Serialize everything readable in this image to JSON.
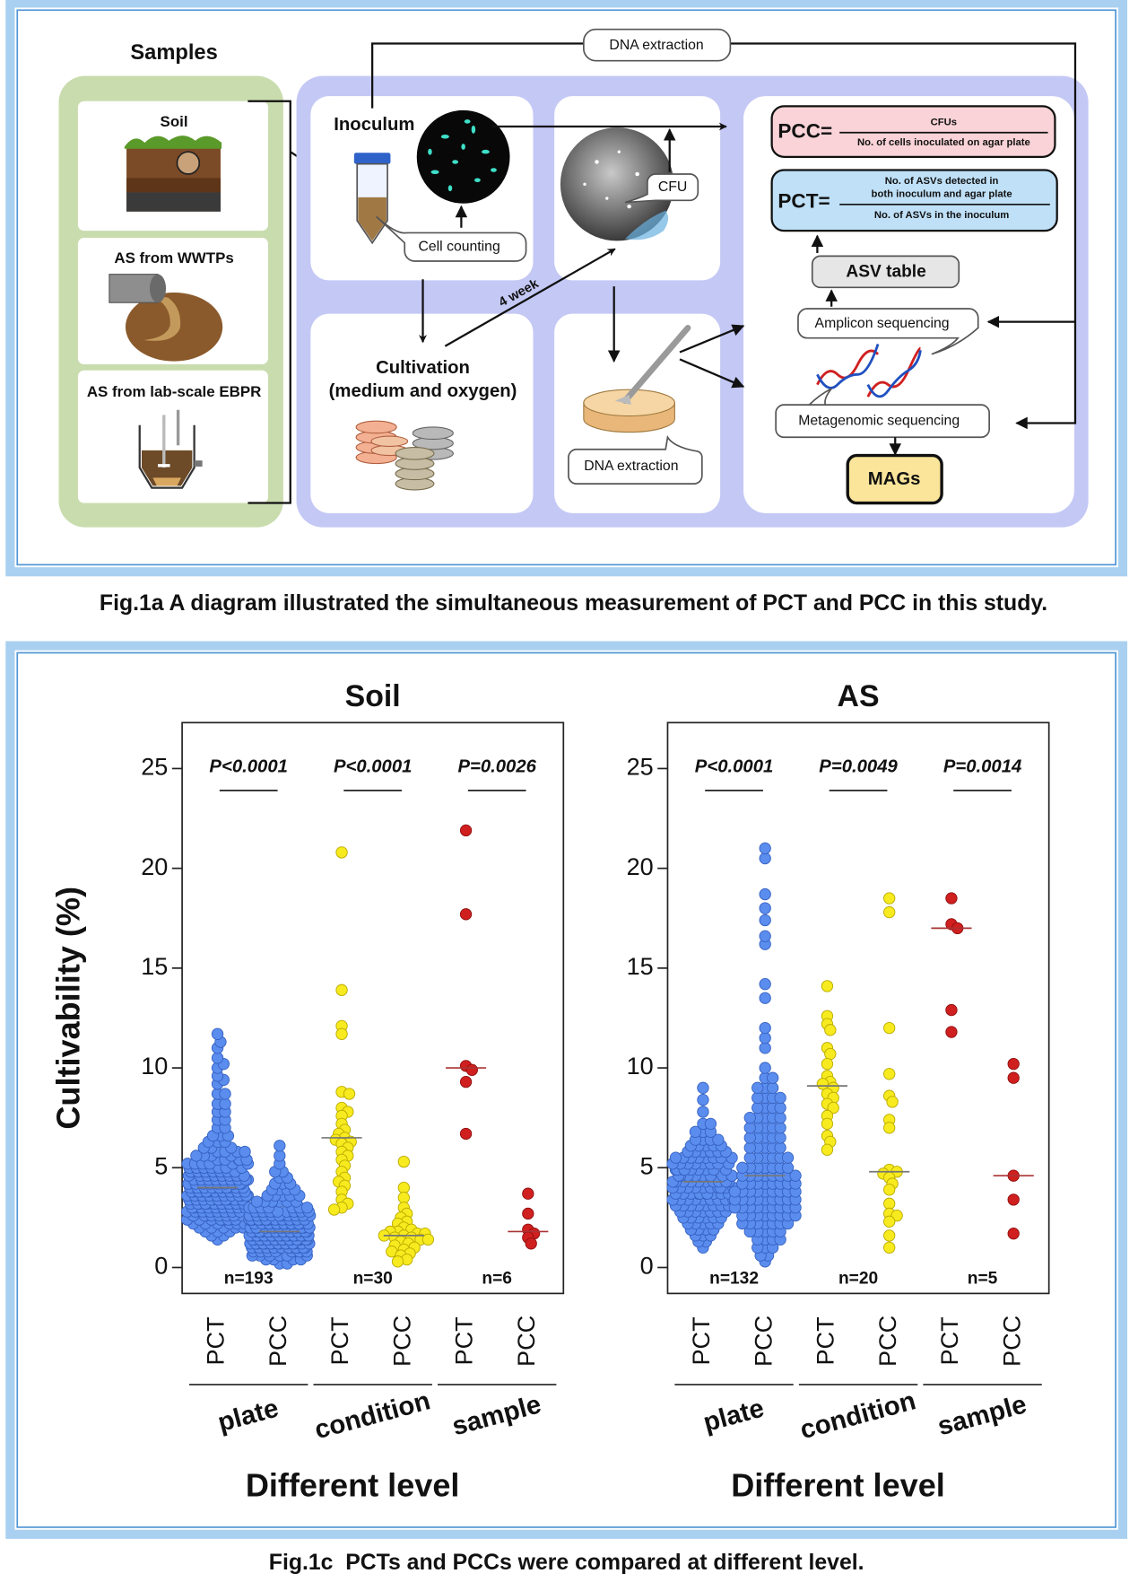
{
  "diagram": {
    "samples_title": "Samples",
    "samples": [
      "Soil",
      "AS from WWTPs",
      "AS from lab-scale EBPR"
    ],
    "inoculum": "Inoculum",
    "cell_counting": "Cell counting",
    "dna_extraction_inoculum": "DNA extraction",
    "cultivation": [
      "Cultivation",
      "(medium and oxygen)"
    ],
    "incubation": "4 week",
    "cfu": "CFU",
    "dna_extraction_plate": "DNA extraction",
    "pcc": {
      "lhs": "PCC=",
      "numerator": "CFUs",
      "denominator": "No. of cells inoculated on agar plate"
    },
    "pct": {
      "lhs": "PCT=",
      "numerator": [
        "No. of ASVs detected in",
        "both inoculum and agar plate"
      ],
      "denominator": "No. of ASVs in the inoculum"
    },
    "asv_table": "ASV table",
    "amplicon_sequencing": "Amplicon sequencing",
    "metagenomic_sequencing": "Metagenomic sequencing",
    "mags": "MAGs"
  },
  "captions": {
    "fig1a": "Fig.1a A diagram illustrated the simultaneous measurement of PCT and PCC in this study.",
    "fig1c": "Fig.1c  PCTs and PCCs were compared at different level."
  },
  "chart_data": [
    {
      "type": "swarm",
      "title": "Soil",
      "ylabel": "Cultivability (%)",
      "xlabel": "Different level",
      "ylim": [
        -1.3,
        27.3
      ],
      "yticks": [
        0,
        5,
        10,
        15,
        20,
        25
      ],
      "categories": [
        "PCT",
        "PCC",
        "PCT",
        "PCC",
        "PCT",
        "PCC"
      ],
      "groups": [
        {
          "name": "plate",
          "p_label": "P<0.0001",
          "n_label": "n=193",
          "color": "#5b8def",
          "medians": [
            4.0,
            1.8
          ],
          "values": [
            [
              1.4,
              1.6,
              1.6,
              1.8,
              1.8,
              1.8,
              2.0,
              2.0,
              2.0,
              2.0,
              2.0,
              2.2,
              2.2,
              2.2,
              2.2,
              2.2,
              2.2,
              2.4,
              2.4,
              2.4,
              2.4,
              2.4,
              2.4,
              2.4,
              2.6,
              2.6,
              2.6,
              2.6,
              2.6,
              2.6,
              2.6,
              2.6,
              2.8,
              2.8,
              2.8,
              2.8,
              2.8,
              2.8,
              2.8,
              2.8,
              2.8,
              3.0,
              3.0,
              3.0,
              3.0,
              3.0,
              3.0,
              3.0,
              3.0,
              3.0,
              3.0,
              3.2,
              3.2,
              3.2,
              3.2,
              3.2,
              3.2,
              3.2,
              3.2,
              3.2,
              3.2,
              3.4,
              3.4,
              3.4,
              3.4,
              3.4,
              3.4,
              3.4,
              3.4,
              3.4,
              3.4,
              3.4,
              3.6,
              3.6,
              3.6,
              3.6,
              3.6,
              3.6,
              3.6,
              3.6,
              3.6,
              3.6,
              3.6,
              3.8,
              3.8,
              3.8,
              3.8,
              3.8,
              3.8,
              3.8,
              3.8,
              3.8,
              3.8,
              3.8,
              4.0,
              4.0,
              4.0,
              4.0,
              4.0,
              4.0,
              4.0,
              4.0,
              4.0,
              4.0,
              4.0,
              4.2,
              4.2,
              4.2,
              4.2,
              4.2,
              4.2,
              4.2,
              4.2,
              4.2,
              4.2,
              4.4,
              4.4,
              4.4,
              4.4,
              4.4,
              4.4,
              4.4,
              4.4,
              4.4,
              4.6,
              4.6,
              4.6,
              4.6,
              4.6,
              4.6,
              4.6,
              4.6,
              4.8,
              4.8,
              4.8,
              4.8,
              4.8,
              4.8,
              4.8,
              5.0,
              5.0,
              5.0,
              5.0,
              5.0,
              5.0,
              5.0,
              5.2,
              5.2,
              5.2,
              5.2,
              5.2,
              5.2,
              5.4,
              5.4,
              5.4,
              5.4,
              5.4,
              5.6,
              5.6,
              5.6,
              5.6,
              5.8,
              5.8,
              5.8,
              5.8,
              6.0,
              6.0,
              6.0,
              6.3,
              6.3,
              6.3,
              6.6,
              6.6,
              6.6,
              7.0,
              7.0,
              7.4,
              7.4,
              7.8,
              7.8,
              8.2,
              8.2,
              8.7,
              8.7,
              9.2,
              9.4,
              9.6,
              10.0,
              10.2,
              10.5,
              11.0,
              11.3,
              11.7
            ],
            [
              0.2,
              0.2,
              0.4,
              0.4,
              0.4,
              0.4,
              0.6,
              0.6,
              0.6,
              0.6,
              0.6,
              0.6,
              0.8,
              0.8,
              0.8,
              0.8,
              0.8,
              0.8,
              0.8,
              0.8,
              0.8,
              1.0,
              1.0,
              1.0,
              1.0,
              1.0,
              1.0,
              1.0,
              1.0,
              1.0,
              1.0,
              1.0,
              1.0,
              1.2,
              1.2,
              1.2,
              1.2,
              1.2,
              1.2,
              1.2,
              1.2,
              1.2,
              1.2,
              1.2,
              1.2,
              1.2,
              1.2,
              1.2,
              1.4,
              1.4,
              1.4,
              1.4,
              1.4,
              1.4,
              1.4,
              1.4,
              1.4,
              1.4,
              1.4,
              1.4,
              1.4,
              1.4,
              1.4,
              1.4,
              1.4,
              1.6,
              1.6,
              1.6,
              1.6,
              1.6,
              1.6,
              1.6,
              1.6,
              1.6,
              1.6,
              1.6,
              1.6,
              1.6,
              1.6,
              1.6,
              1.6,
              1.6,
              1.6,
              1.8,
              1.8,
              1.8,
              1.8,
              1.8,
              1.8,
              1.8,
              1.8,
              1.8,
              1.8,
              1.8,
              1.8,
              1.8,
              1.8,
              1.8,
              1.8,
              1.8,
              1.8,
              2.0,
              2.0,
              2.0,
              2.0,
              2.0,
              2.0,
              2.0,
              2.0,
              2.0,
              2.0,
              2.0,
              2.0,
              2.0,
              2.0,
              2.0,
              2.0,
              2.2,
              2.2,
              2.2,
              2.2,
              2.2,
              2.2,
              2.2,
              2.2,
              2.2,
              2.2,
              2.2,
              2.2,
              2.2,
              2.2,
              2.4,
              2.4,
              2.4,
              2.4,
              2.4,
              2.4,
              2.4,
              2.4,
              2.4,
              2.4,
              2.4,
              2.4,
              2.6,
              2.6,
              2.6,
              2.6,
              2.6,
              2.6,
              2.6,
              2.6,
              2.6,
              2.6,
              2.8,
              2.8,
              2.8,
              2.8,
              2.8,
              2.8,
              2.8,
              2.8,
              3.0,
              3.0,
              3.0,
              3.0,
              3.0,
              3.0,
              3.0,
              3.3,
              3.3,
              3.3,
              3.3,
              3.3,
              3.3,
              3.6,
              3.6,
              3.6,
              3.6,
              3.6,
              3.9,
              3.9,
              3.9,
              3.9,
              4.2,
              4.2,
              4.2,
              4.5,
              4.5,
              4.8,
              4.8,
              5.2,
              5.6,
              6.1
            ]
          ]
        },
        {
          "name": "condition",
          "p_label": "P<0.0001",
          "n_label": "n=30",
          "color": "#f7ea1e",
          "medians": [
            6.5,
            1.6
          ],
          "values": [
            [
              20.8,
              13.9,
              12.1,
              11.7,
              8.8,
              8.7,
              8.0,
              7.8,
              7.6,
              7.2,
              6.9,
              6.7,
              6.5,
              6.4,
              6.3,
              6.2,
              6.0,
              5.8,
              5.6,
              5.4,
              5.1,
              4.8,
              4.5,
              4.3,
              4.1,
              3.8,
              3.4,
              3.2,
              3.0,
              2.9
            ],
            [
              5.3,
              4.0,
              3.5,
              3.0,
              2.7,
              2.5,
              2.3,
              2.2,
              2.0,
              1.9,
              1.8,
              1.8,
              1.7,
              1.7,
              1.6,
              1.6,
              1.5,
              1.5,
              1.4,
              1.4,
              1.3,
              1.2,
              1.1,
              1.0,
              0.9,
              0.8,
              0.7,
              0.6,
              0.4,
              0.3
            ]
          ]
        },
        {
          "name": "sample",
          "p_label": "P=0.0026",
          "n_label": "n=6",
          "color": "#d01f1f",
          "medians": [
            10.0,
            1.8
          ],
          "values": [
            [
              21.9,
              17.7,
              10.1,
              9.9,
              9.3,
              6.7
            ],
            [
              3.7,
              2.7,
              1.9,
              1.7,
              1.5,
              1.2
            ]
          ]
        }
      ]
    },
    {
      "type": "swarm",
      "title": "AS",
      "xlabel": "Different level",
      "ylim": [
        -1.3,
        27.3
      ],
      "yticks": [
        0,
        5,
        10,
        15,
        20,
        25
      ],
      "categories": [
        "PCT",
        "PCC",
        "PCT",
        "PCC",
        "PCT",
        "PCC"
      ],
      "groups": [
        {
          "name": "plate",
          "p_label": "P<0.0001",
          "n_label": "n=132",
          "color": "#5b8def",
          "medians": [
            4.3,
            4.6
          ],
          "values": [
            [
              1.0,
              1.3,
              1.3,
              1.6,
              1.6,
              1.6,
              1.9,
              1.9,
              1.9,
              1.9,
              2.2,
              2.2,
              2.2,
              2.2,
              2.2,
              2.5,
              2.5,
              2.5,
              2.5,
              2.5,
              2.5,
              2.8,
              2.8,
              2.8,
              2.8,
              2.8,
              2.8,
              2.8,
              3.1,
              3.1,
              3.1,
              3.1,
              3.1,
              3.1,
              3.1,
              3.1,
              3.4,
              3.4,
              3.4,
              3.4,
              3.4,
              3.4,
              3.4,
              3.4,
              3.4,
              3.7,
              3.7,
              3.7,
              3.7,
              3.7,
              3.7,
              3.7,
              3.7,
              3.7,
              3.7,
              4.0,
              4.0,
              4.0,
              4.0,
              4.0,
              4.0,
              4.0,
              4.0,
              4.0,
              4.0,
              4.3,
              4.3,
              4.3,
              4.3,
              4.3,
              4.3,
              4.3,
              4.3,
              4.3,
              4.3,
              4.6,
              4.6,
              4.6,
              4.6,
              4.6,
              4.6,
              4.6,
              4.6,
              4.6,
              4.9,
              4.9,
              4.9,
              4.9,
              4.9,
              4.9,
              4.9,
              4.9,
              4.9,
              5.2,
              5.2,
              5.2,
              5.2,
              5.2,
              5.2,
              5.2,
              5.2,
              5.5,
              5.5,
              5.5,
              5.5,
              5.5,
              5.5,
              5.5,
              5.5,
              5.8,
              5.8,
              5.8,
              5.8,
              5.8,
              5.8,
              6.1,
              6.1,
              6.1,
              6.1,
              6.1,
              6.4,
              6.4,
              6.4,
              6.4,
              6.8,
              6.8,
              6.8,
              7.2,
              7.2,
              7.8,
              8.4,
              9.0
            ],
            [
              0.3,
              0.6,
              0.6,
              1.0,
              1.0,
              1.0,
              1.4,
              1.4,
              1.4,
              1.4,
              1.8,
              1.8,
              1.8,
              1.8,
              1.8,
              2.2,
              2.2,
              2.2,
              2.2,
              2.2,
              2.2,
              2.2,
              2.6,
              2.6,
              2.6,
              2.6,
              2.6,
              2.6,
              2.6,
              2.6,
              3.0,
              3.0,
              3.0,
              3.0,
              3.0,
              3.0,
              3.0,
              3.0,
              3.0,
              3.4,
              3.4,
              3.4,
              3.4,
              3.4,
              3.4,
              3.4,
              3.4,
              3.4,
              3.8,
              3.8,
              3.8,
              3.8,
              3.8,
              3.8,
              3.8,
              3.8,
              3.8,
              4.2,
              4.2,
              4.2,
              4.2,
              4.2,
              4.2,
              4.2,
              4.2,
              4.6,
              4.6,
              4.6,
              4.6,
              4.6,
              4.6,
              4.6,
              4.6,
              5.0,
              5.0,
              5.0,
              5.0,
              5.0,
              5.0,
              5.0,
              5.5,
              5.5,
              5.5,
              5.5,
              5.5,
              5.5,
              6.0,
              6.0,
              6.0,
              6.0,
              6.0,
              6.5,
              6.5,
              6.5,
              6.5,
              6.5,
              7.0,
              7.0,
              7.0,
              7.0,
              7.0,
              7.5,
              7.5,
              7.5,
              7.5,
              7.5,
              8.0,
              8.0,
              8.0,
              8.0,
              8.5,
              8.5,
              8.5,
              8.5,
              9.0,
              9.0,
              9.0,
              9.5,
              9.5,
              10.0,
              11.0,
              11.5,
              12.0,
              13.5,
              14.2,
              16.2,
              16.6,
              17.4,
              18.0,
              18.7,
              20.5,
              21.0
            ]
          ]
        },
        {
          "name": "condition",
          "p_label": "P=0.0049",
          "n_label": "n=20",
          "color": "#f7ea1e",
          "medians": [
            9.1,
            4.8
          ],
          "values": [
            [
              14.1,
              12.6,
              12.2,
              11.9,
              11.0,
              10.7,
              10.2,
              9.6,
              9.3,
              9.2,
              9.0,
              8.7,
              8.5,
              8.2,
              8.0,
              7.6,
              7.2,
              6.6,
              6.3,
              5.9
            ],
            [
              18.5,
              17.8,
              12.0,
              9.7,
              8.6,
              8.3,
              7.4,
              7.0,
              4.9,
              4.8,
              4.7,
              4.5,
              4.2,
              3.9,
              3.2,
              2.7,
              2.6,
              2.3,
              1.6,
              1.0
            ]
          ]
        },
        {
          "name": "sample",
          "p_label": "P=0.0014",
          "n_label": "n=5",
          "color": "#d01f1f",
          "medians": [
            17.0,
            4.6
          ],
          "values": [
            [
              18.5,
              17.2,
              17.0,
              12.9,
              11.8
            ],
            [
              10.2,
              9.5,
              4.6,
              3.4,
              1.7
            ]
          ]
        }
      ]
    }
  ]
}
